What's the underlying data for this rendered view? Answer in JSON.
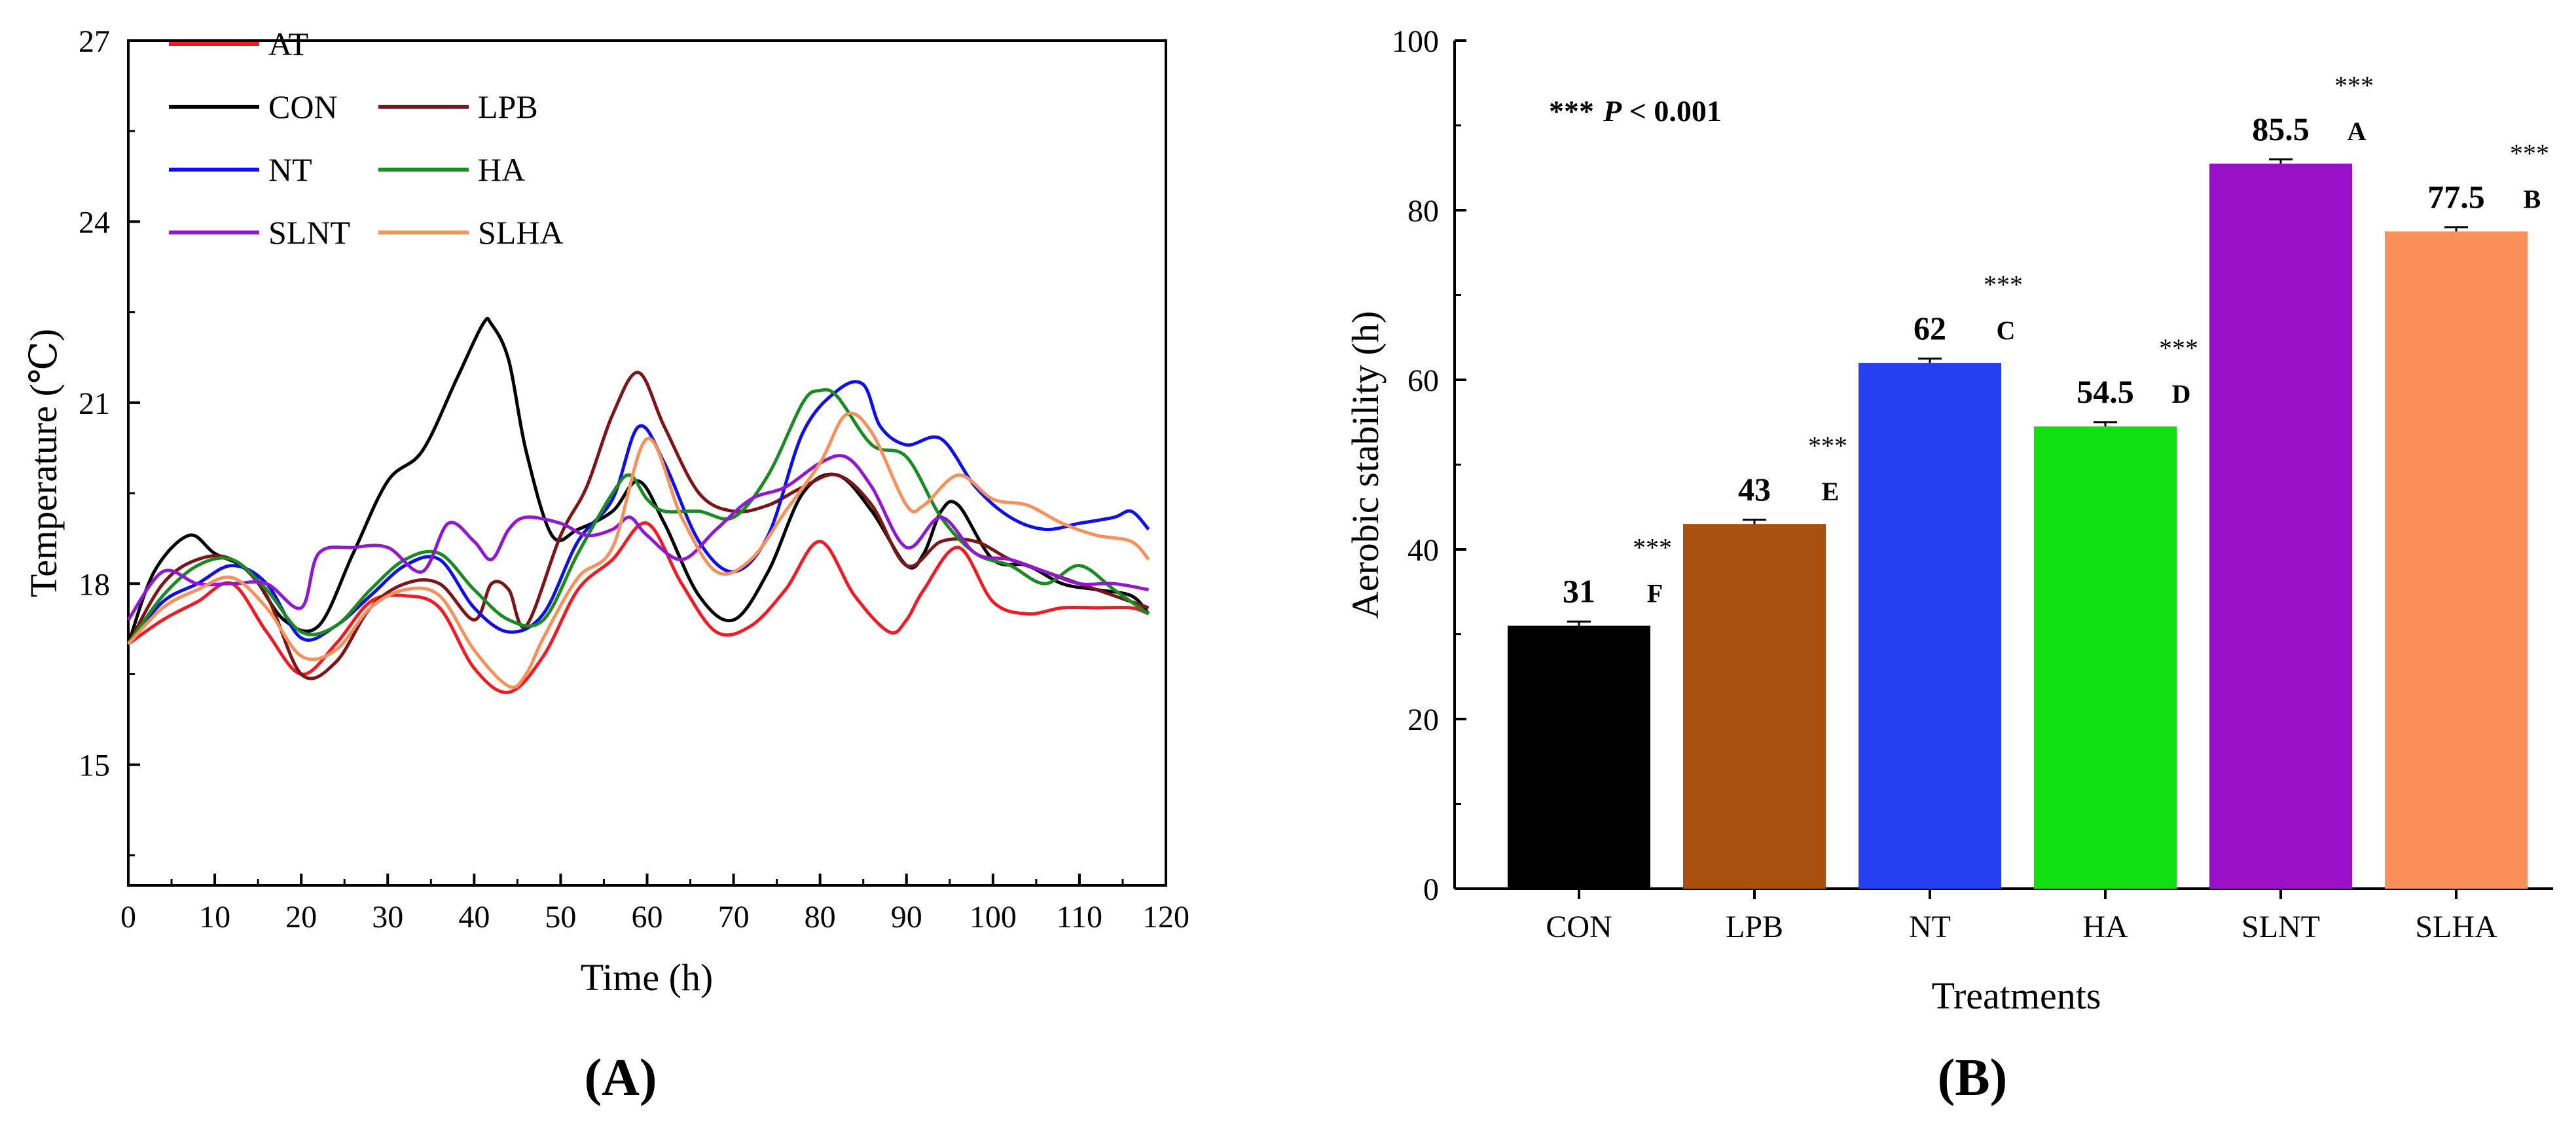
{
  "chart_data": [
    {
      "type": "line",
      "panel": "(A)",
      "xlabel": "Time (h)",
      "ylabel": "Temperature (℃)",
      "xlim": [
        0,
        120
      ],
      "ylim": [
        13,
        27
      ],
      "xticks": [
        0,
        10,
        20,
        30,
        40,
        50,
        60,
        70,
        80,
        90,
        100,
        110,
        120
      ],
      "yticks": [
        15,
        18,
        21,
        24,
        27
      ],
      "legend_location": "top-left",
      "series": [
        {
          "name": "AT",
          "color": "#ee1c25",
          "x": [
            0,
            4,
            8,
            12,
            16,
            20,
            24,
            28,
            32,
            36,
            40,
            44,
            48,
            52,
            56,
            60,
            64,
            68,
            72,
            76,
            80,
            84,
            88,
            90,
            92,
            96,
            100,
            104,
            108,
            112,
            116,
            118
          ],
          "y": [
            17.0,
            17.4,
            17.7,
            18.0,
            17.2,
            16.5,
            17.0,
            17.7,
            17.8,
            17.6,
            16.6,
            16.2,
            16.8,
            17.9,
            18.4,
            19.0,
            18.0,
            17.2,
            17.3,
            17.9,
            18.7,
            17.8,
            17.2,
            17.4,
            17.9,
            18.6,
            17.7,
            17.5,
            17.6,
            17.6,
            17.6,
            17.5
          ]
        },
        {
          "name": "CON",
          "color": "#000000",
          "x": [
            0,
            3,
            7,
            10,
            14,
            18,
            22,
            26,
            30,
            34,
            38,
            41,
            42,
            44,
            46,
            49,
            52,
            56,
            59,
            62,
            66,
            70,
            74,
            78,
            82,
            86,
            90,
            92,
            94,
            96,
            100,
            104,
            108,
            112,
            116,
            118
          ],
          "y": [
            17.0,
            18.2,
            18.8,
            18.5,
            18.2,
            17.4,
            17.3,
            18.5,
            19.7,
            20.2,
            21.4,
            22.3,
            22.3,
            21.7,
            20.2,
            18.8,
            18.9,
            19.2,
            19.7,
            19.0,
            17.8,
            17.4,
            18.2,
            19.5,
            19.8,
            19.2,
            18.3,
            18.5,
            19.2,
            19.3,
            18.4,
            18.3,
            18.0,
            17.9,
            17.8,
            17.5
          ]
        },
        {
          "name": "LPB",
          "color": "#7b1518",
          "x": [
            0,
            4,
            8,
            12,
            16,
            20,
            24,
            28,
            32,
            36,
            40,
            42,
            44,
            46,
            50,
            53,
            56,
            59,
            62,
            66,
            70,
            74,
            78,
            82,
            86,
            90,
            94,
            98,
            102,
            106,
            110,
            114,
            118
          ],
          "y": [
            17.0,
            18.0,
            18.4,
            18.4,
            17.8,
            16.5,
            16.7,
            17.6,
            18.0,
            18.0,
            17.4,
            18.0,
            17.9,
            17.3,
            18.8,
            19.6,
            20.8,
            21.5,
            20.6,
            19.5,
            19.2,
            19.3,
            19.6,
            19.8,
            19.3,
            18.3,
            18.7,
            18.7,
            18.4,
            18.2,
            18.0,
            17.8,
            17.6
          ]
        },
        {
          "name": "NT",
          "color": "#1010e6",
          "x": [
            0,
            4,
            8,
            12,
            16,
            20,
            24,
            28,
            32,
            36,
            40,
            44,
            48,
            52,
            56,
            59,
            62,
            66,
            70,
            74,
            78,
            82,
            85,
            87,
            90,
            94,
            98,
            102,
            106,
            110,
            114,
            116,
            118
          ],
          "y": [
            17.0,
            17.7,
            18.0,
            18.3,
            18.0,
            17.1,
            17.3,
            17.8,
            18.3,
            18.4,
            17.6,
            17.2,
            17.5,
            18.7,
            19.4,
            20.6,
            20.0,
            18.7,
            18.2,
            18.8,
            20.5,
            21.2,
            21.3,
            20.6,
            20.3,
            20.4,
            19.6,
            19.1,
            18.9,
            19.0,
            19.1,
            19.2,
            18.9
          ]
        },
        {
          "name": "HA",
          "color": "#1a8a22",
          "x": [
            0,
            4,
            8,
            12,
            16,
            20,
            24,
            28,
            32,
            36,
            40,
            44,
            48,
            52,
            56,
            58,
            60,
            62,
            66,
            70,
            74,
            78,
            80,
            82,
            86,
            90,
            94,
            98,
            102,
            106,
            110,
            114,
            118
          ],
          "y": [
            17.0,
            17.8,
            18.3,
            18.4,
            17.9,
            17.2,
            17.3,
            17.9,
            18.4,
            18.5,
            17.9,
            17.4,
            17.4,
            18.5,
            19.5,
            19.8,
            19.4,
            19.2,
            19.2,
            19.1,
            19.8,
            21.0,
            21.2,
            21.1,
            20.3,
            20.1,
            19.1,
            18.5,
            18.3,
            18.0,
            18.3,
            17.9,
            17.5
          ]
        },
        {
          "name": "SLNT",
          "color": "#9018d0",
          "x": [
            0,
            4,
            8,
            12,
            16,
            20,
            22,
            26,
            30,
            34,
            37,
            40,
            42,
            44,
            46,
            50,
            53,
            56,
            58,
            60,
            64,
            68,
            72,
            76,
            80,
            83,
            86,
            90,
            94,
            98,
            102,
            106,
            110,
            114,
            118
          ],
          "y": [
            17.4,
            18.2,
            18.0,
            18.0,
            18.0,
            17.6,
            18.5,
            18.6,
            18.6,
            18.2,
            19.0,
            18.7,
            18.4,
            18.9,
            19.1,
            19.0,
            18.8,
            18.9,
            19.1,
            18.8,
            18.4,
            18.9,
            19.4,
            19.6,
            20.0,
            20.1,
            19.6,
            18.6,
            19.1,
            18.5,
            18.4,
            18.2,
            18.0,
            18.0,
            17.9
          ]
        },
        {
          "name": "SLHA",
          "color": "#f5915a",
          "x": [
            0,
            4,
            8,
            12,
            16,
            20,
            24,
            28,
            32,
            36,
            40,
            44,
            46,
            48,
            52,
            56,
            60,
            64,
            68,
            72,
            76,
            80,
            83,
            86,
            90,
            92,
            96,
            100,
            104,
            108,
            112,
            116,
            118
          ],
          "y": [
            17.0,
            17.6,
            17.9,
            18.1,
            17.6,
            16.8,
            16.9,
            17.6,
            17.9,
            17.8,
            16.9,
            16.3,
            16.5,
            17.1,
            18.1,
            18.6,
            20.4,
            19.1,
            18.2,
            18.4,
            19.2,
            20.0,
            20.8,
            20.5,
            19.3,
            19.3,
            19.8,
            19.4,
            19.3,
            19.0,
            18.8,
            18.7,
            18.4
          ]
        }
      ]
    },
    {
      "type": "bar",
      "panel": "(B)",
      "xlabel": "Treatments",
      "ylabel": "Aerobic stability (h)",
      "ylim": [
        0,
        100
      ],
      "yticks": [
        0,
        20,
        40,
        60,
        80,
        100
      ],
      "annotation": "*** P < 0.001",
      "categories": [
        "CON",
        "LPB",
        "NT",
        "HA",
        "SLNT",
        "SLHA"
      ],
      "values": [
        31,
        43,
        62,
        54.5,
        85.5,
        77.5
      ],
      "value_labels": [
        "31",
        "43",
        "62",
        "54.5",
        "85.5",
        "77.5"
      ],
      "errors": [
        0.5,
        0.5,
        0.5,
        0.5,
        0.5,
        0.5
      ],
      "letters": [
        "F",
        "E",
        "C",
        "D",
        "A",
        "B"
      ],
      "significance": [
        "***",
        "***",
        "***",
        "***",
        "***",
        "***"
      ],
      "colors": [
        "#000000",
        "#a8500f",
        "#2440f0",
        "#10e010",
        "#9a10c8",
        "#f89058"
      ]
    }
  ],
  "annotation_parts": {
    "stars": "***",
    "p": "P",
    "rest": " < 0.001"
  }
}
